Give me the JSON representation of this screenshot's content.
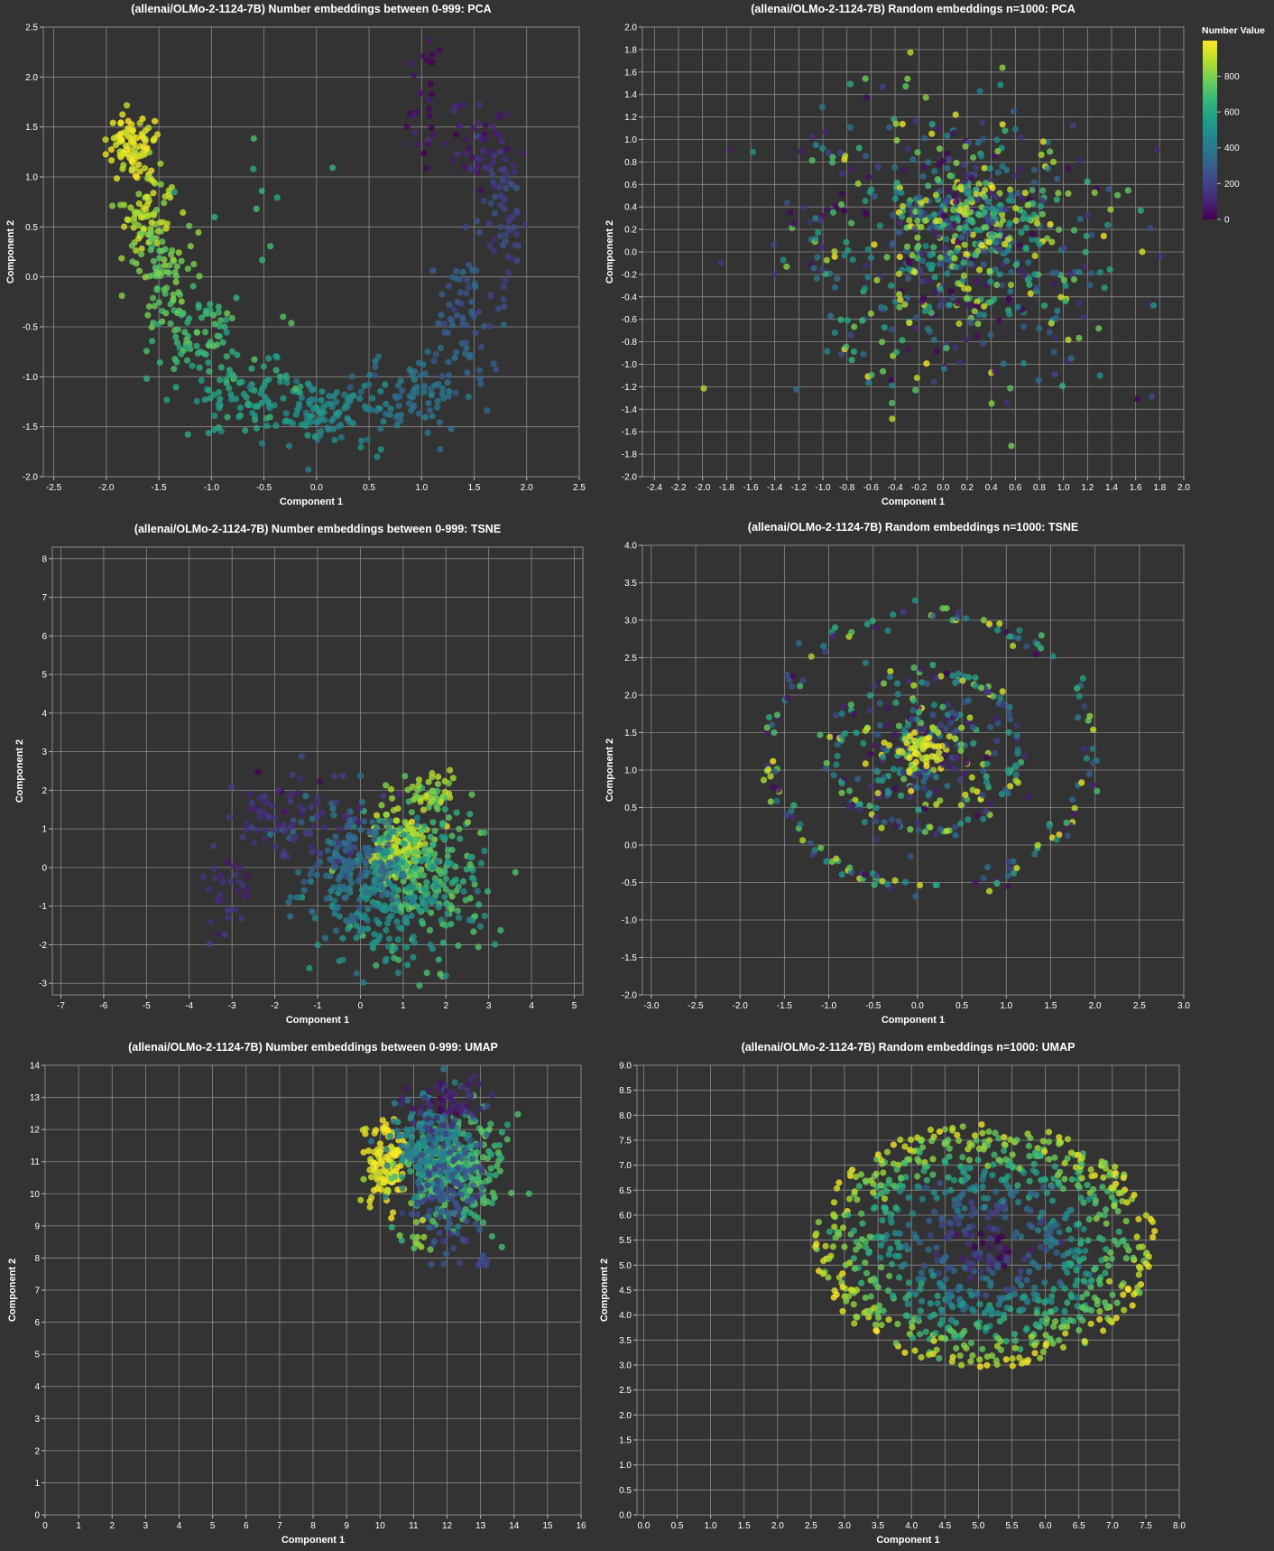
{
  "legend": {
    "title": "Number Value",
    "labels": [
      "800",
      "600",
      "400",
      "200",
      "0"
    ],
    "colormap": "viridis",
    "domain": [
      0,
      999
    ]
  },
  "chart_data": [
    {
      "id": "pca-number",
      "type": "scatter",
      "title": "(allenai/OLMo-2-1124-7B) Number embeddings between 0-999: PCA",
      "xlabel": "Component 1",
      "ylabel": "Component 2",
      "xlim": [
        -2.6,
        2.5
      ],
      "ylim": [
        -2.0,
        2.5
      ],
      "xticks": [
        "-2.5",
        "-2.0",
        "-1.5",
        "-1.0",
        "-0.5",
        "0.0",
        "0.5",
        "1.0",
        "1.5",
        "2.0",
        "2.5"
      ],
      "yticks": [
        "-2.0",
        "-1.5",
        "-1.0",
        "-0.5",
        "0.0",
        "0.5",
        "1.0",
        "1.5",
        "2.0",
        "2.5"
      ],
      "grid": true,
      "color_by": "Number Value",
      "clusters": [
        {
          "value": 960,
          "x": -1.75,
          "y": 1.3,
          "sx": 0.14,
          "sy": 0.18,
          "n": 90
        },
        {
          "value": 880,
          "x": -1.62,
          "y": 0.65,
          "sx": 0.15,
          "sy": 0.2,
          "n": 70
        },
        {
          "value": 780,
          "x": -1.45,
          "y": 0.05,
          "sx": 0.14,
          "sy": 0.22,
          "n": 70
        },
        {
          "value": 680,
          "x": -1.15,
          "y": -0.6,
          "sx": 0.2,
          "sy": 0.2,
          "n": 80
        },
        {
          "value": 580,
          "x": -0.6,
          "y": -1.2,
          "sx": 0.3,
          "sy": 0.2,
          "n": 90
        },
        {
          "value": 480,
          "x": 0.1,
          "y": -1.35,
          "sx": 0.35,
          "sy": 0.15,
          "n": 100
        },
        {
          "value": 380,
          "x": 0.9,
          "y": -1.2,
          "sx": 0.3,
          "sy": 0.2,
          "n": 80
        },
        {
          "value": 300,
          "x": 1.45,
          "y": -0.4,
          "sx": 0.15,
          "sy": 0.35,
          "n": 60
        },
        {
          "value": 200,
          "x": 1.75,
          "y": 0.6,
          "sx": 0.12,
          "sy": 0.35,
          "n": 60
        },
        {
          "value": 100,
          "x": 1.55,
          "y": 1.4,
          "sx": 0.2,
          "sy": 0.2,
          "n": 50
        },
        {
          "value": 40,
          "x": 1.05,
          "y": 1.8,
          "sx": 0.1,
          "sy": 0.35,
          "n": 25
        },
        {
          "value": 700,
          "x": -0.4,
          "y": 0.6,
          "sx": 0.4,
          "sy": 0.5,
          "n": 12
        }
      ]
    },
    {
      "id": "pca-random",
      "type": "scatter",
      "title": "(allenai/OLMo-2-1124-7B) Random embeddings n=1000: PCA",
      "xlabel": "Component 1",
      "ylabel": "Component 2",
      "xlim": [
        -2.5,
        2.0
      ],
      "ylim": [
        -2.0,
        2.0
      ],
      "xticks": [
        "-2.4",
        "-2.2",
        "-2.0",
        "-1.8",
        "-1.6",
        "-1.4",
        "-1.2",
        "-1.0",
        "-0.8",
        "-0.6",
        "-0.4",
        "-0.2",
        "0.0",
        "0.2",
        "0.4",
        "0.6",
        "0.8",
        "1.0",
        "1.2",
        "1.4",
        "1.6",
        "1.8",
        "2.0"
      ],
      "yticks": [
        "-2.0",
        "-1.8",
        "-1.6",
        "-1.4",
        "-1.2",
        "-1.0",
        "-0.8",
        "-0.6",
        "-0.4",
        "-0.2",
        "0.0",
        "0.2",
        "0.4",
        "0.6",
        "0.8",
        "1.0",
        "1.2",
        "1.4",
        "1.6",
        "1.8",
        "2.0"
      ],
      "grid": true,
      "color_by": "Number Value",
      "clusters": [
        {
          "value": "random",
          "x": 0.1,
          "y": 0.05,
          "sx": 0.65,
          "sy": 0.6,
          "n": 600
        },
        {
          "value": "random",
          "x": 0.25,
          "y": 0.35,
          "sx": 0.25,
          "sy": 0.2,
          "n": 150
        }
      ]
    },
    {
      "id": "tsne-number",
      "type": "scatter",
      "title": "(allenai/OLMo-2-1124-7B) Number embeddings between 0-999: TSNE",
      "xlabel": "Component 1",
      "ylabel": "Component 2",
      "xlim": [
        -7.2,
        5.2
      ],
      "ylim": [
        -3.3,
        8.3
      ],
      "xticks": [
        "-7",
        "-6",
        "-5",
        "-4",
        "-3",
        "-2",
        "-1",
        "0",
        "1",
        "2",
        "3",
        "4",
        "5"
      ],
      "yticks": [
        "-3",
        "-2",
        "-1",
        "0",
        "1",
        "2",
        "3",
        "4",
        "5",
        "6",
        "7",
        "8"
      ],
      "grid": true,
      "color_by": "Number Value",
      "clusters": [
        {
          "value": 900,
          "x": 1.0,
          "y": 0.5,
          "sx": 0.35,
          "sy": 0.45,
          "n": 150
        },
        {
          "value": 700,
          "x": 1.5,
          "y": -0.3,
          "sx": 0.7,
          "sy": 1.0,
          "n": 200
        },
        {
          "value": 500,
          "x": 0.6,
          "y": -0.8,
          "sx": 0.9,
          "sy": 1.0,
          "n": 200
        },
        {
          "value": 350,
          "x": -0.2,
          "y": 0.0,
          "sx": 0.55,
          "sy": 0.8,
          "n": 150
        },
        {
          "value": 150,
          "x": -1.2,
          "y": 1.2,
          "sx": 0.7,
          "sy": 0.6,
          "n": 60
        },
        {
          "value": 120,
          "x": -3.1,
          "y": -0.6,
          "sx": 0.25,
          "sy": 0.5,
          "n": 30
        },
        {
          "value": 150,
          "x": -2.3,
          "y": 1.4,
          "sx": 0.3,
          "sy": 0.4,
          "n": 25
        },
        {
          "value": 850,
          "x": 1.6,
          "y": 1.9,
          "sx": 0.35,
          "sy": 0.35,
          "n": 40
        }
      ]
    },
    {
      "id": "tsne-random",
      "type": "scatter",
      "title": "(allenai/OLMo-2-1124-7B) Random embeddings n=1000: TSNE",
      "xlabel": "Component 1",
      "ylabel": "Component 2",
      "xlim": [
        -3.1,
        3.0
      ],
      "ylim": [
        -2.0,
        4.0
      ],
      "xticks": [
        "-3.0",
        "-2.5",
        "-2.0",
        "-1.5",
        "-1.0",
        "-0.5",
        "0.0",
        "0.5",
        "1.0",
        "1.5",
        "2.0",
        "2.5",
        "3.0"
      ],
      "yticks": [
        "-2.0",
        "-1.5",
        "-1.0",
        "-0.5",
        "0.0",
        "0.5",
        "1.0",
        "1.5",
        "2.0",
        "2.5",
        "3.0",
        "3.5",
        "4.0"
      ],
      "grid": true,
      "color_by": "Number Value",
      "rings": [
        {
          "cx": 0.15,
          "cy": 1.25,
          "r": 1.8,
          "ry": 1.85,
          "n": 160
        },
        {
          "cx": 0.1,
          "cy": 1.25,
          "r": 1.05,
          "ry": 1.05,
          "n": 100
        }
      ],
      "clusters": [
        {
          "value": "random",
          "x": 0.1,
          "y": 1.25,
          "sx": 0.45,
          "sy": 0.45,
          "n": 250
        },
        {
          "value": 950,
          "x": 0.05,
          "y": 1.3,
          "sx": 0.12,
          "sy": 0.12,
          "n": 40
        }
      ]
    },
    {
      "id": "umap-number",
      "type": "scatter",
      "title": "(allenai/OLMo-2-1124-7B) Number embeddings between 0-999: UMAP",
      "xlabel": "Component 1",
      "ylabel": "Component 2",
      "xlim": [
        0,
        16
      ],
      "ylim": [
        0,
        14
      ],
      "xticks": [
        "0",
        "1",
        "2",
        "3",
        "4",
        "5",
        "6",
        "7",
        "8",
        "9",
        "10",
        "11",
        "12",
        "13",
        "14",
        "15",
        "16"
      ],
      "yticks": [
        "0",
        "1",
        "2",
        "3",
        "4",
        "5",
        "6",
        "7",
        "8",
        "9",
        "10",
        "11",
        "12",
        "13",
        "14"
      ],
      "grid": true,
      "color_by": "Number Value",
      "clusters": [
        {
          "value": 970,
          "x": 10.2,
          "y": 11.0,
          "sx": 0.35,
          "sy": 0.7,
          "n": 120
        },
        {
          "value": 700,
          "x": 12.3,
          "y": 10.8,
          "sx": 0.7,
          "sy": 0.9,
          "n": 250
        },
        {
          "value": 450,
          "x": 11.5,
          "y": 11.4,
          "sx": 0.55,
          "sy": 0.75,
          "n": 200
        },
        {
          "value": 250,
          "x": 12.0,
          "y": 10.2,
          "sx": 0.7,
          "sy": 1.0,
          "n": 120
        },
        {
          "value": 100,
          "x": 12.1,
          "y": 12.8,
          "sx": 0.6,
          "sy": 0.35,
          "n": 60
        },
        {
          "value": 250,
          "x": 13.0,
          "y": 7.8,
          "sx": 0.12,
          "sy": 0.2,
          "n": 10
        },
        {
          "value": 820,
          "x": 11.2,
          "y": 8.6,
          "sx": 0.25,
          "sy": 0.25,
          "n": 12
        }
      ]
    },
    {
      "id": "umap-random",
      "type": "scatter",
      "title": "(allenai/OLMo-2-1124-7B) Random embeddings n=1000: UMAP",
      "xlabel": "Component 1",
      "ylabel": "Component 2",
      "xlim": [
        -0.1,
        8.0
      ],
      "ylim": [
        0.0,
        9.0
      ],
      "xticks": [
        "0.0",
        "0.5",
        "1.0",
        "1.5",
        "2.0",
        "2.5",
        "3.0",
        "3.5",
        "4.0",
        "4.5",
        "5.0",
        "5.5",
        "6.0",
        "6.5",
        "7.0",
        "7.5",
        "8.0"
      ],
      "yticks": [
        "0.0",
        "0.5",
        "1.0",
        "1.5",
        "2.0",
        "2.5",
        "3.0",
        "3.5",
        "4.0",
        "4.5",
        "5.0",
        "5.5",
        "6.0",
        "6.5",
        "7.0",
        "7.5",
        "8.0",
        "8.5",
        "9.0"
      ],
      "grid": true,
      "color_by": "Number Value",
      "radial": {
        "cx": 5.1,
        "cy": 5.4,
        "rx": 2.55,
        "ry": 2.45,
        "n": 950
      }
    }
  ]
}
